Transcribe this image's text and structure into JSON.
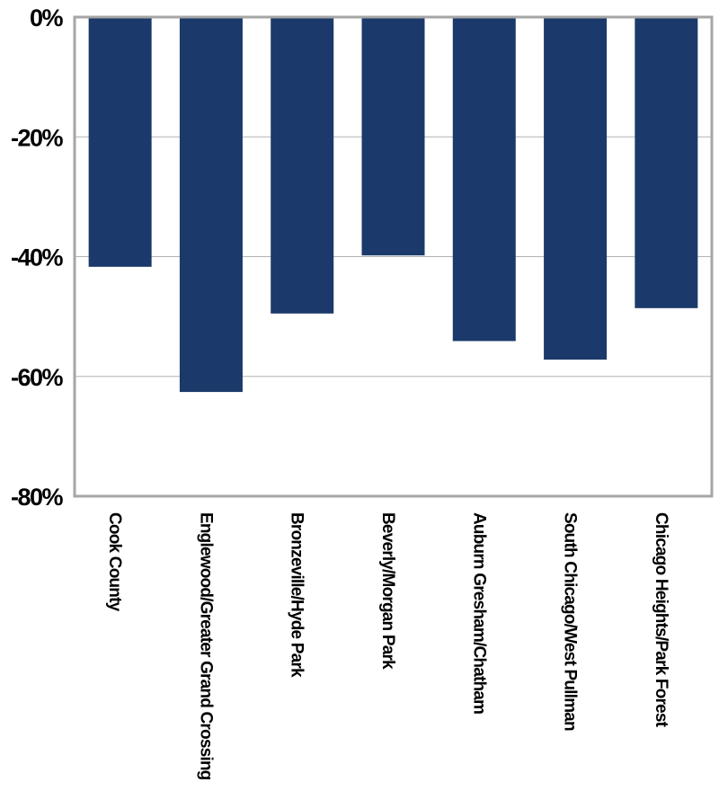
{
  "chart_data": {
    "type": "bar",
    "title": "",
    "xlabel": "",
    "ylabel": "",
    "ylim": [
      -80,
      0
    ],
    "yticks": [
      0,
      -20,
      -40,
      -60,
      -80
    ],
    "ytick_labels": [
      "0%",
      "-20%",
      "-40%",
      "-60%",
      "-80%"
    ],
    "grid": true,
    "legend": "none",
    "categories": [
      "Cook County",
      "Englewood/Greater Grand Crossing",
      "Bronzeville/Hyde Park",
      "Beverly/Morgan Park",
      "Auburn Gresham/Chatham",
      "South Chicago/West Pullman",
      "Chicago Heights/Park Forest"
    ],
    "values": [
      -41.7,
      -62.6,
      -49.5,
      -39.8,
      -54.1,
      -57.2,
      -48.6
    ],
    "bar_color": "#1b3a6b",
    "grid_color": "#b3b3b3",
    "frame_color": "#a6a6a6"
  }
}
